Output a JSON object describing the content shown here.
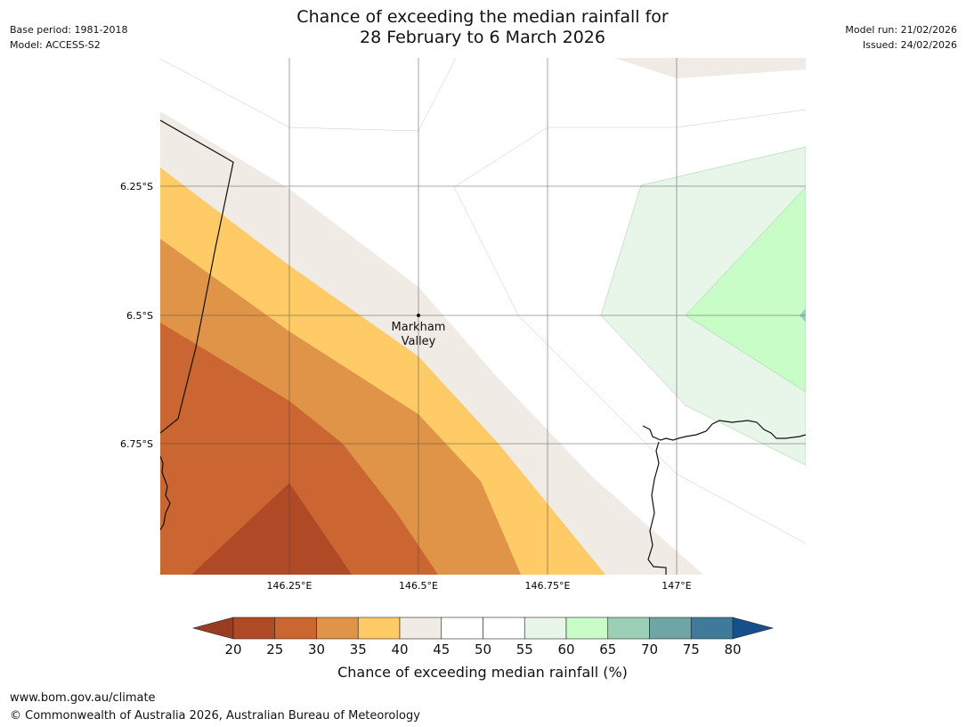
{
  "header": {
    "base_period": "Base period: 1981-2018",
    "model": "Model: ACCESS-S2",
    "title_line1": "Chance of exceeding the median rainfall for",
    "title_line2": "28 February to 6 March 2026",
    "model_run": "Model run: 21/02/2026",
    "issued": "Issued: 24/02/2026"
  },
  "map": {
    "place_label_line1": "Markham",
    "place_label_line2": "Valley",
    "lat_labels": [
      "6.25°S",
      "6.5°S",
      "6.75°S"
    ],
    "lon_labels": [
      "146.25°E",
      "146.5°E",
      "146.75°E",
      "147°E"
    ]
  },
  "colorbar": {
    "label": "Chance of exceeding median rainfall (%)",
    "ticks": [
      "20",
      "25",
      "30",
      "35",
      "40",
      "45",
      "50",
      "55",
      "60",
      "65",
      "70",
      "75",
      "80"
    ],
    "colors": {
      "under": "#9a3b24",
      "c20_25": "#b04a26",
      "c25_30": "#cb6531",
      "c30_35": "#e09448",
      "c35_40": "#fecb67",
      "c40_45": "#f0ebe4",
      "c45_50": "#ffffff",
      "c50_55": "#ffffff",
      "c55_60": "#e8f5e9",
      "c60_65": "#c8fdc8",
      "c65_70": "#9ccfb6",
      "c70_75": "#6ea5a6",
      "c75_80": "#3f7a9a",
      "over": "#174f8a"
    }
  },
  "footer": {
    "url": "www.bom.gov.au/climate",
    "copyright": "© Commonwealth of Australia 2026, Australian Bureau of Meteorology"
  }
}
